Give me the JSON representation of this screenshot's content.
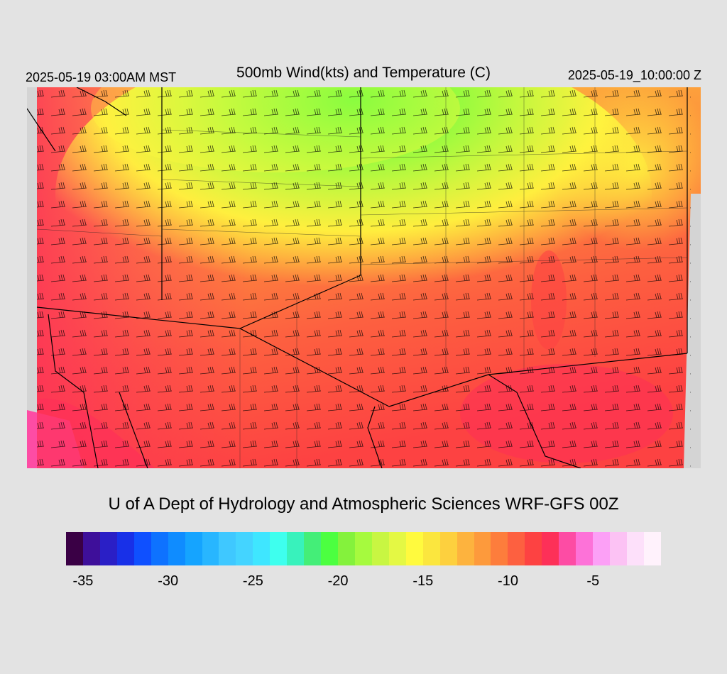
{
  "header": {
    "local_time": "2025-05-19 03:00AM MST",
    "title": "500mb Wind(kts) and Temperature (C)",
    "valid_time": "2025-05-19_10:00:00 Z"
  },
  "credit": "U of A Dept of Hydrology and Atmospheric Sciences WRF-GFS 00Z",
  "legend": {
    "min": -36,
    "max": -1,
    "tick_labels": [
      "-35",
      "-30",
      "-25",
      "-20",
      "-15",
      "-10",
      "-5"
    ],
    "tick_values": [
      -35,
      -30,
      -25,
      -20,
      -15,
      -10,
      -5
    ],
    "colors": [
      "#3a0045",
      "#3e0f9a",
      "#2a1fc6",
      "#1830e8",
      "#0f50ff",
      "#0e72ff",
      "#0f8cff",
      "#15a4ff",
      "#28b6ff",
      "#3fc8ff",
      "#44d4ff",
      "#3fe6ff",
      "#3effee",
      "#38f2bc",
      "#44ee78",
      "#4cff40",
      "#84f23c",
      "#a6fa3e",
      "#c8f642",
      "#e4f844",
      "#fffa3e",
      "#fbe63e",
      "#fdd03e",
      "#fdb33e",
      "#fd9a3c",
      "#fd7d3c",
      "#fd6040",
      "#fd4242",
      "#fd3058",
      "#fd4ca4",
      "#fd72d8",
      "#fca0f6",
      "#fcc2f4",
      "#fde0fa",
      "#fff2fc"
    ]
  }
}
